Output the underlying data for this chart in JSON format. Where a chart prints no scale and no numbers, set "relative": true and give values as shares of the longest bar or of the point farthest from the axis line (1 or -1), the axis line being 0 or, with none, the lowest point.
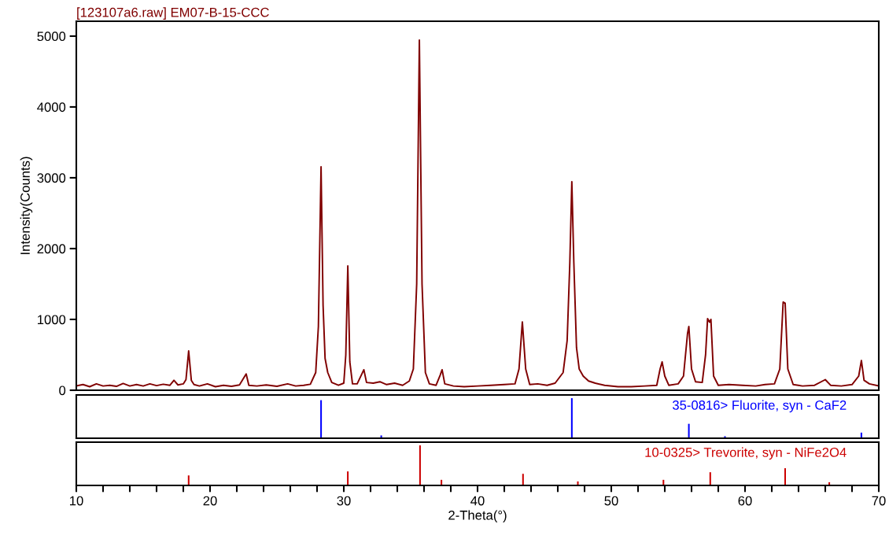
{
  "chart_data": [
    {
      "type": "line",
      "title": "[123107a6.raw] EM07-B-15-CCC",
      "ylabel": "Intensity(Counts)",
      "xlim": [
        10,
        70
      ],
      "ylim": [
        0,
        5210
      ],
      "yticks": [
        0,
        1000,
        2000,
        3000,
        4000,
        5000
      ],
      "tick_labels": "y",
      "grid": false,
      "legend": false,
      "series": [
        {
          "color": "#800000",
          "x": [
            10.0,
            10.5,
            11.0,
            11.5,
            12.0,
            12.5,
            13.0,
            13.5,
            14.0,
            14.5,
            15.0,
            15.5,
            16.0,
            16.5,
            17.0,
            17.3,
            17.6,
            18.0,
            18.2,
            18.4,
            18.6,
            18.8,
            19.2,
            19.8,
            20.4,
            21.0,
            21.6,
            22.2,
            22.7,
            22.9,
            23.5,
            24.2,
            25.0,
            25.8,
            26.4,
            27.0,
            27.5,
            27.9,
            28.1,
            28.3,
            28.45,
            28.6,
            28.8,
            29.1,
            29.6,
            30.0,
            30.15,
            30.3,
            30.45,
            30.65,
            31.0,
            31.5,
            31.7,
            32.2,
            32.7,
            33.2,
            33.8,
            34.4,
            34.9,
            35.2,
            35.45,
            35.65,
            35.85,
            36.1,
            36.4,
            36.9,
            37.2,
            37.35,
            37.55,
            38.2,
            39.0,
            40.0,
            41.0,
            42.0,
            42.8,
            43.1,
            43.35,
            43.6,
            43.9,
            44.5,
            45.2,
            45.8,
            46.4,
            46.7,
            46.9,
            47.05,
            47.2,
            47.4,
            47.6,
            47.9,
            48.3,
            48.8,
            49.5,
            50.5,
            51.5,
            52.5,
            53.4,
            53.65,
            53.8,
            54.0,
            54.3,
            55.0,
            55.4,
            55.7,
            55.8,
            56.0,
            56.3,
            56.8,
            57.05,
            57.2,
            57.35,
            57.45,
            57.65,
            58.0,
            58.8,
            59.8,
            60.8,
            61.5,
            62.2,
            62.6,
            62.85,
            63.0,
            63.2,
            63.6,
            64.3,
            65.2,
            66.0,
            66.4,
            67.2,
            68.0,
            68.5,
            68.7,
            68.9,
            69.3,
            70.0
          ],
          "values": [
            60,
            80,
            50,
            90,
            60,
            70,
            55,
            95,
            60,
            80,
            60,
            90,
            65,
            85,
            70,
            140,
            75,
            90,
            150,
            555,
            140,
            80,
            60,
            90,
            50,
            70,
            55,
            75,
            230,
            70,
            60,
            75,
            55,
            90,
            60,
            70,
            85,
            250,
            900,
            3155,
            1200,
            450,
            250,
            110,
            70,
            100,
            500,
            1755,
            400,
            90,
            90,
            290,
            110,
            100,
            120,
            80,
            100,
            70,
            130,
            300,
            1500,
            4945,
            1500,
            250,
            90,
            70,
            210,
            290,
            90,
            60,
            50,
            60,
            70,
            80,
            90,
            300,
            965,
            300,
            80,
            90,
            70,
            100,
            250,
            700,
            1800,
            2945,
            1800,
            600,
            300,
            200,
            130,
            100,
            70,
            50,
            50,
            60,
            70,
            300,
            400,
            200,
            70,
            90,
            200,
            800,
            900,
            300,
            120,
            110,
            500,
            1010,
            960,
            1000,
            200,
            70,
            80,
            70,
            60,
            80,
            90,
            300,
            1245,
            1230,
            300,
            80,
            60,
            70,
            150,
            70,
            60,
            80,
            200,
            420,
            140,
            90,
            60
          ]
        }
      ]
    },
    {
      "type": "bar",
      "relative": true,
      "xlim": [
        10,
        70
      ],
      "tick_labels": false,
      "legend": false,
      "series": [
        {
          "name": "35-0816> Fluorite, syn - CaF2",
          "color": "#0000ff",
          "x": [
            28.3,
            32.8,
            47.05,
            55.8,
            58.5,
            68.7
          ],
          "values": [
            0.95,
            0.07,
            1,
            0.36,
            0.05,
            0.14
          ]
        }
      ]
    },
    {
      "type": "bar",
      "relative": true,
      "xlim": [
        10,
        70
      ],
      "xlabel": "2-Theta(°)",
      "tick_labels": "x",
      "legend": false,
      "xticks": [
        10,
        {
          "value": 12,
          "label": null
        },
        {
          "value": 14,
          "label": null
        },
        {
          "value": 16,
          "label": null
        },
        {
          "value": 18,
          "label": null
        },
        20,
        {
          "value": 22,
          "label": null
        },
        {
          "value": 24,
          "label": null
        },
        {
          "value": 26,
          "label": null
        },
        {
          "value": 28,
          "label": null
        },
        30,
        {
          "value": 32,
          "label": null
        },
        {
          "value": 34,
          "label": null
        },
        {
          "value": 36,
          "label": null
        },
        {
          "value": 38,
          "label": null
        },
        40,
        {
          "value": 42,
          "label": null
        },
        {
          "value": 44,
          "label": null
        },
        {
          "value": 46,
          "label": null
        },
        {
          "value": 48,
          "label": null
        },
        50,
        {
          "value": 52,
          "label": null
        },
        {
          "value": 54,
          "label": null
        },
        {
          "value": 56,
          "label": null
        },
        {
          "value": 58,
          "label": null
        },
        60,
        {
          "value": 62,
          "label": null
        },
        {
          "value": 64,
          "label": null
        },
        {
          "value": 66,
          "label": null
        },
        {
          "value": 68,
          "label": null
        },
        70
      ],
      "series": [
        {
          "name": "10-0325> Trevorite, syn - NiFe2O4",
          "color": "#cc0000",
          "x": [
            18.4,
            30.3,
            35.7,
            37.3,
            43.4,
            47.5,
            53.9,
            57.4,
            63.0,
            66.3
          ],
          "values": [
            0.25,
            0.35,
            1,
            0.14,
            0.29,
            0.1,
            0.14,
            0.33,
            0.43,
            0.08
          ]
        }
      ]
    }
  ]
}
